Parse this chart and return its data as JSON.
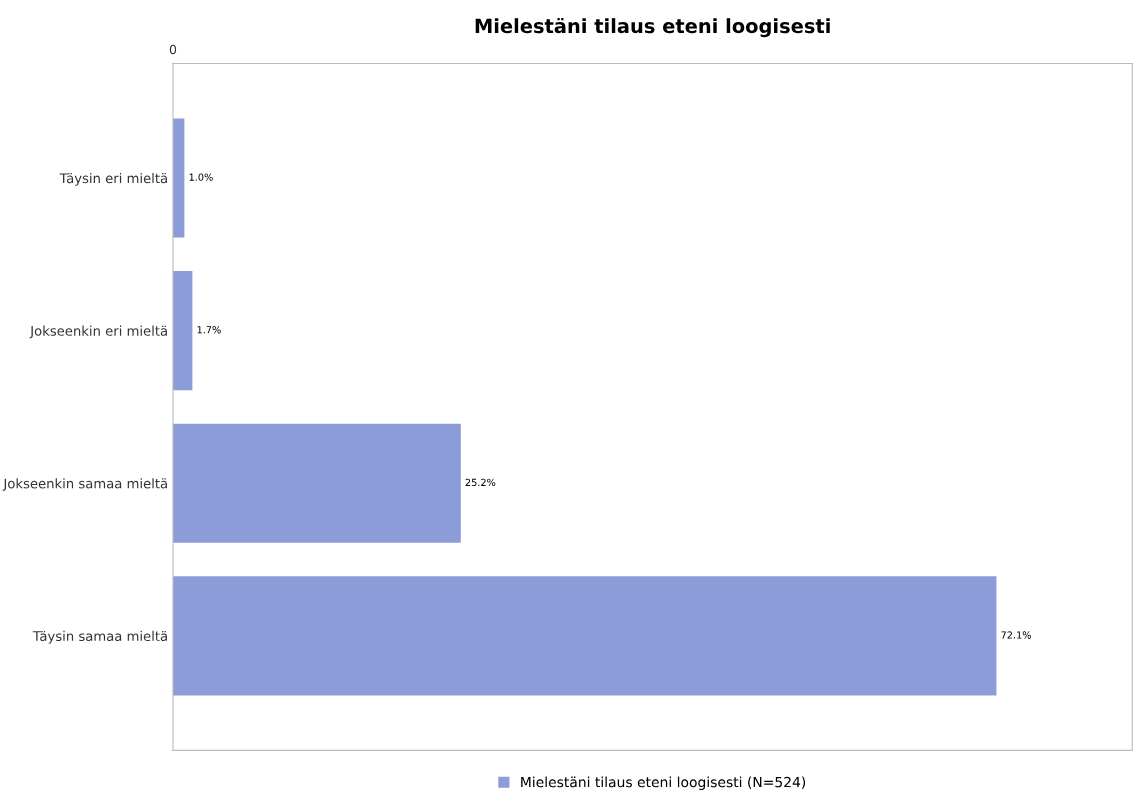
{
  "chart_data": {
    "type": "bar",
    "orientation": "horizontal",
    "title": "Mielestäni tilaus eteni loogisesti",
    "categories": [
      "Täysin eri mieltä",
      "Jokseenkin eri mieltä",
      "Jokseenkin samaa mieltä",
      "Täysin samaa mieltä"
    ],
    "series": [
      {
        "name": "Mielestäni tilaus eteni loogisesti (N=524)",
        "color": "#8b9cd8",
        "values": [
          1.0,
          1.7,
          25.2,
          72.1
        ],
        "value_labels": [
          "1.0%",
          "1.7%",
          "25.2%",
          "72.1%"
        ]
      }
    ],
    "annotations": [
      "0"
    ],
    "grid": false,
    "legend": "bottom"
  }
}
